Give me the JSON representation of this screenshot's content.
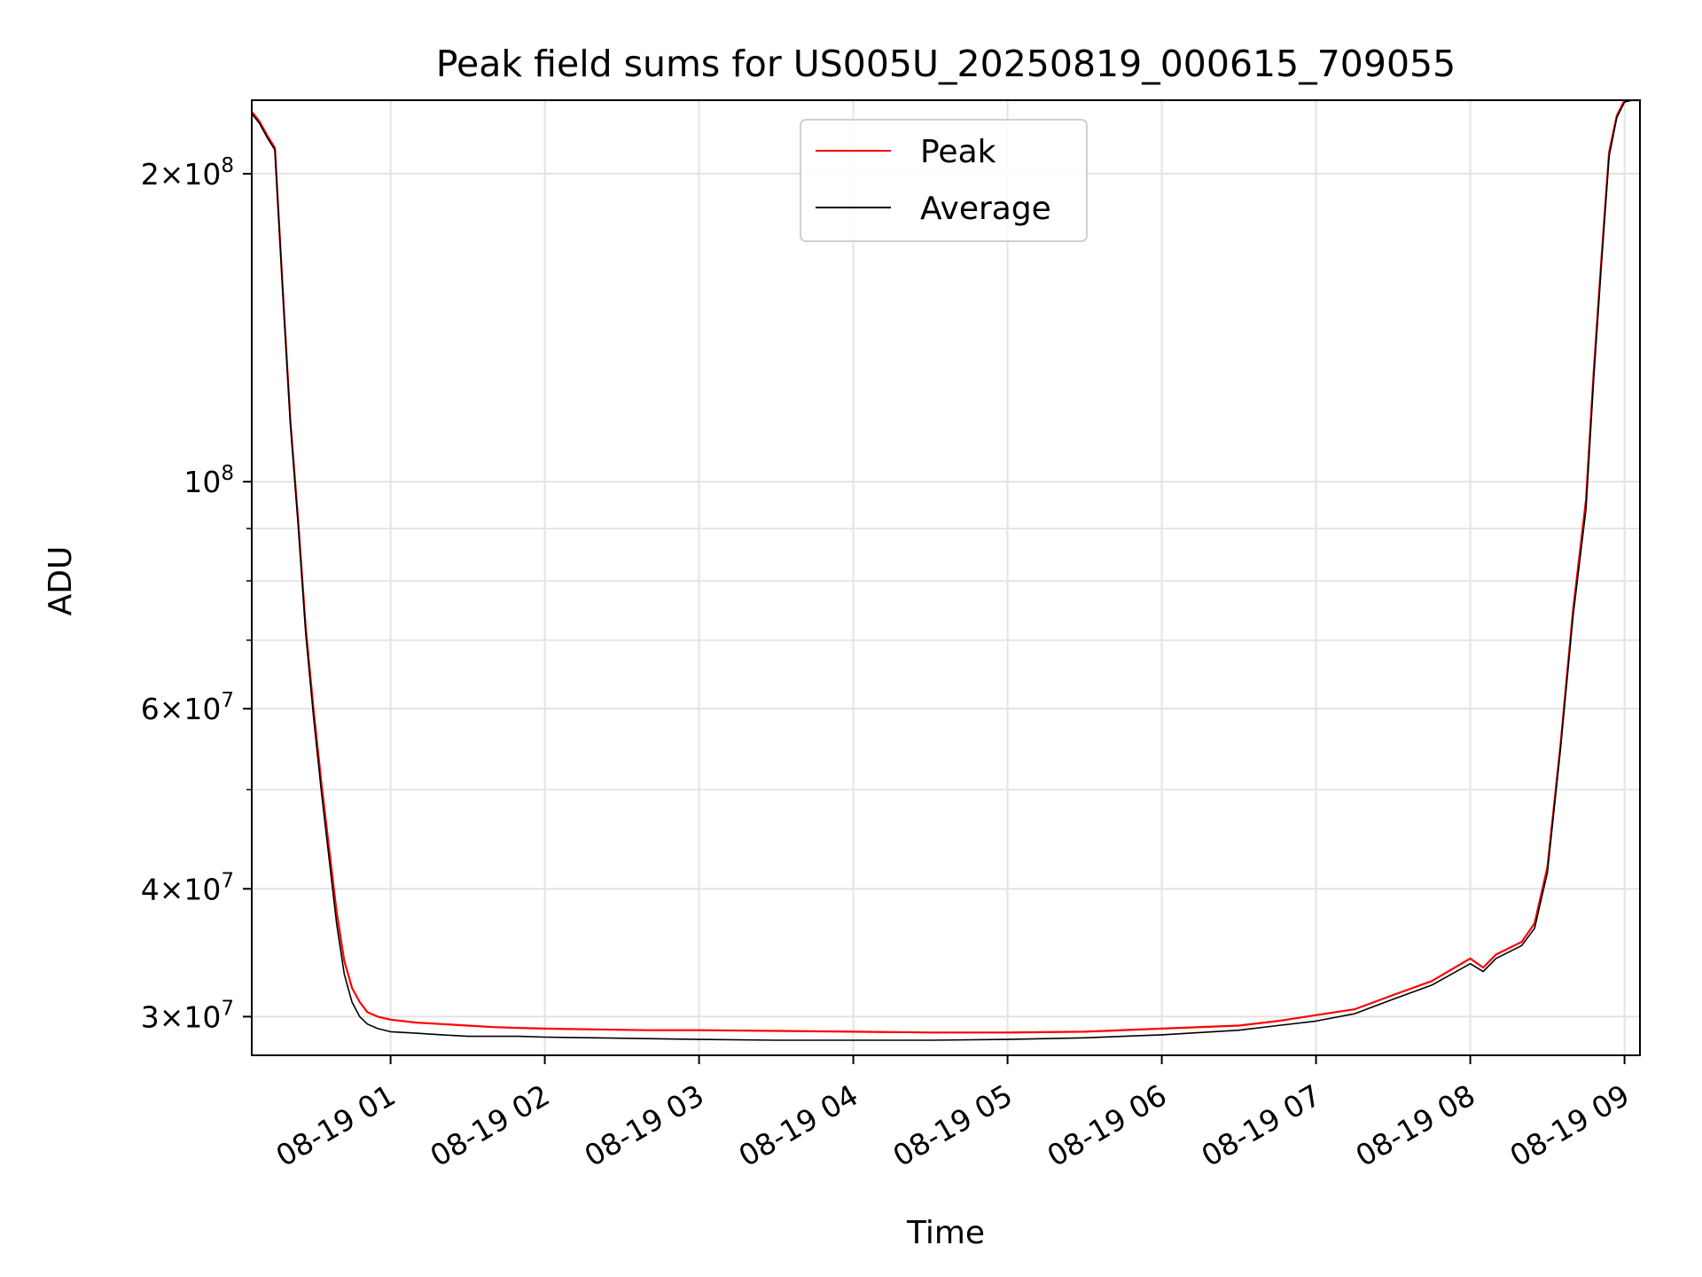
{
  "chart_data": {
    "type": "line",
    "title": "Peak field sums for US005U_20250819_000615_709055",
    "xlabel": "Time",
    "ylabel": "ADU",
    "yscale": "log",
    "grid": true,
    "legend_position": "top-center",
    "xlim": [
      "2025-08-19 00:06",
      "2025-08-19 09:06"
    ],
    "ylim": [
      27500000,
      236000000
    ],
    "x_ticks": [
      {
        "value": "2025-08-19 01:00",
        "label": "08-19 01"
      },
      {
        "value": "2025-08-19 02:00",
        "label": "08-19 02"
      },
      {
        "value": "2025-08-19 03:00",
        "label": "08-19 03"
      },
      {
        "value": "2025-08-19 04:00",
        "label": "08-19 04"
      },
      {
        "value": "2025-08-19 05:00",
        "label": "08-19 05"
      },
      {
        "value": "2025-08-19 06:00",
        "label": "08-19 06"
      },
      {
        "value": "2025-08-19 07:00",
        "label": "08-19 07"
      },
      {
        "value": "2025-08-19 08:00",
        "label": "08-19 08"
      },
      {
        "value": "2025-08-19 09:00",
        "label": "08-19 09"
      }
    ],
    "y_ticks_major": [
      {
        "value": 30000000,
        "mantissa": "3",
        "exponent": "7"
      },
      {
        "value": 40000000,
        "mantissa": "4",
        "exponent": "7"
      },
      {
        "value": 60000000,
        "mantissa": "6",
        "exponent": "7"
      },
      {
        "value": 100000000,
        "mantissa": "",
        "exponent": "8"
      },
      {
        "value": 200000000,
        "mantissa": "2",
        "exponent": "8"
      }
    ],
    "y_ticks_minor": [
      50000000,
      70000000,
      80000000,
      90000000
    ],
    "series": [
      {
        "name": "Peak",
        "color": "#ff0000",
        "x": [
          "2025-08-19 00:06",
          "2025-08-19 00:09",
          "2025-08-19 00:12",
          "2025-08-19 00:15",
          "2025-08-19 00:18",
          "2025-08-19 00:21",
          "2025-08-19 00:24",
          "2025-08-19 00:27",
          "2025-08-19 00:30",
          "2025-08-19 00:33",
          "2025-08-19 00:36",
          "2025-08-19 00:39",
          "2025-08-19 00:42",
          "2025-08-19 00:45",
          "2025-08-19 00:48",
          "2025-08-19 00:51",
          "2025-08-19 00:55",
          "2025-08-19 01:00",
          "2025-08-19 01:10",
          "2025-08-19 01:20",
          "2025-08-19 01:30",
          "2025-08-19 01:40",
          "2025-08-19 01:50",
          "2025-08-19 02:00",
          "2025-08-19 02:20",
          "2025-08-19 02:40",
          "2025-08-19 03:00",
          "2025-08-19 03:30",
          "2025-08-19 04:00",
          "2025-08-19 04:30",
          "2025-08-19 05:00",
          "2025-08-19 05:30",
          "2025-08-19 06:00",
          "2025-08-19 06:30",
          "2025-08-19 06:45",
          "2025-08-19 07:00",
          "2025-08-19 07:15",
          "2025-08-19 07:30",
          "2025-08-19 07:45",
          "2025-08-19 08:00",
          "2025-08-19 08:05",
          "2025-08-19 08:10",
          "2025-08-19 08:20",
          "2025-08-19 08:25",
          "2025-08-19 08:30",
          "2025-08-19 08:35",
          "2025-08-19 08:40",
          "2025-08-19 08:45",
          "2025-08-19 08:48",
          "2025-08-19 08:51",
          "2025-08-19 08:54",
          "2025-08-19 08:57",
          "2025-08-19 09:00",
          "2025-08-19 09:03",
          "2025-08-19 09:06"
        ],
        "values": [
          230000000,
          225000000,
          218000000,
          212000000,
          155000000,
          115000000,
          92000000,
          72000000,
          60000000,
          51000000,
          44000000,
          38000000,
          34000000,
          32000000,
          31000000,
          30300000,
          30000000,
          29800000,
          29600000,
          29500000,
          29400000,
          29300000,
          29250000,
          29200000,
          29150000,
          29100000,
          29100000,
          29050000,
          29000000,
          28950000,
          28950000,
          29000000,
          29200000,
          29400000,
          29700000,
          30100000,
          30500000,
          31500000,
          32500000,
          34200000,
          33500000,
          34500000,
          35500000,
          37000000,
          42000000,
          55000000,
          75000000,
          96000000,
          128000000,
          165000000,
          210000000,
          228000000,
          236000000,
          236000000,
          236000000
        ]
      },
      {
        "name": "Average",
        "color": "#000000",
        "x": [
          "2025-08-19 00:06",
          "2025-08-19 00:09",
          "2025-08-19 00:12",
          "2025-08-19 00:15",
          "2025-08-19 00:18",
          "2025-08-19 00:21",
          "2025-08-19 00:24",
          "2025-08-19 00:27",
          "2025-08-19 00:30",
          "2025-08-19 00:33",
          "2025-08-19 00:36",
          "2025-08-19 00:39",
          "2025-08-19 00:42",
          "2025-08-19 00:45",
          "2025-08-19 00:48",
          "2025-08-19 00:51",
          "2025-08-19 00:55",
          "2025-08-19 01:00",
          "2025-08-19 01:10",
          "2025-08-19 01:20",
          "2025-08-19 01:30",
          "2025-08-19 01:40",
          "2025-08-19 01:50",
          "2025-08-19 02:00",
          "2025-08-19 02:20",
          "2025-08-19 02:40",
          "2025-08-19 03:00",
          "2025-08-19 03:30",
          "2025-08-19 04:00",
          "2025-08-19 04:30",
          "2025-08-19 05:00",
          "2025-08-19 05:30",
          "2025-08-19 06:00",
          "2025-08-19 06:30",
          "2025-08-19 06:45",
          "2025-08-19 07:00",
          "2025-08-19 07:15",
          "2025-08-19 07:30",
          "2025-08-19 07:45",
          "2025-08-19 08:00",
          "2025-08-19 08:05",
          "2025-08-19 08:10",
          "2025-08-19 08:20",
          "2025-08-19 08:25",
          "2025-08-19 08:30",
          "2025-08-19 08:35",
          "2025-08-19 08:40",
          "2025-08-19 08:45",
          "2025-08-19 08:48",
          "2025-08-19 08:51",
          "2025-08-19 08:54",
          "2025-08-19 08:57",
          "2025-08-19 09:00",
          "2025-08-19 09:03",
          "2025-08-19 09:06"
        ],
        "values": [
          229000000,
          224000000,
          217000000,
          211000000,
          154000000,
          114000000,
          91000000,
          71000000,
          59000000,
          50000000,
          43000000,
          37000000,
          33000000,
          31000000,
          30000000,
          29500000,
          29200000,
          29000000,
          28900000,
          28800000,
          28700000,
          28700000,
          28700000,
          28650000,
          28600000,
          28550000,
          28500000,
          28450000,
          28450000,
          28450000,
          28500000,
          28600000,
          28800000,
          29100000,
          29400000,
          29700000,
          30200000,
          31200000,
          32200000,
          33800000,
          33200000,
          34200000,
          35200000,
          36600000,
          41500000,
          54500000,
          74000000,
          94000000,
          126000000,
          163000000,
          208000000,
          227000000,
          235000000,
          236000000,
          236000000
        ]
      }
    ]
  }
}
